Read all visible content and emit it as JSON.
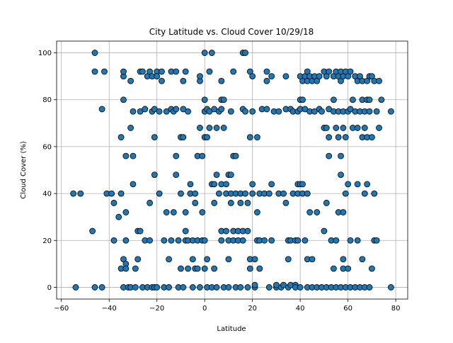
{
  "chart_data": {
    "type": "scatter",
    "title": "City Latitude vs. Cloud Cover 10/29/18",
    "xlabel": "Latitude",
    "ylabel": "Cloud Cover (%)",
    "xlim": [
      -62,
      85
    ],
    "ylim": [
      -5,
      105
    ],
    "xticks": [
      -60,
      -40,
      -20,
      0,
      20,
      40,
      60,
      80
    ],
    "yticks": [
      0,
      20,
      40,
      60,
      80,
      100
    ],
    "xtick_labels": [
      "−60",
      "−40",
      "−20",
      "0",
      "20",
      "40",
      "60",
      "80"
    ],
    "ytick_labels": [
      "0",
      "20",
      "40",
      "60",
      "80",
      "100"
    ],
    "grid": true,
    "marker_color": "#1f77b4",
    "edge_color": "#000000",
    "points": [
      [
        -55,
        40
      ],
      [
        -52,
        40
      ],
      [
        -54,
        0
      ],
      [
        -47,
        24
      ],
      [
        -46,
        100
      ],
      [
        -46,
        92
      ],
      [
        -46,
        0
      ],
      [
        -43,
        0
      ],
      [
        -43,
        76
      ],
      [
        -42,
        92
      ],
      [
        -41,
        40
      ],
      [
        -39,
        40
      ],
      [
        -38,
        36
      ],
      [
        -38,
        20
      ],
      [
        -36,
        30
      ],
      [
        -35,
        64
      ],
      [
        -35,
        40
      ],
      [
        -35,
        8
      ],
      [
        -34,
        12
      ],
      [
        -34,
        0
      ],
      [
        -34,
        90
      ],
      [
        -34,
        92
      ],
      [
        -34,
        80
      ],
      [
        -33,
        56
      ],
      [
        -33,
        32
      ],
      [
        -33,
        20
      ],
      [
        -33,
        10
      ],
      [
        -33,
        8
      ],
      [
        -32,
        0
      ],
      [
        -31,
        0
      ],
      [
        -31,
        68
      ],
      [
        -31,
        88
      ],
      [
        -30,
        44
      ],
      [
        -30,
        75
      ],
      [
        -30,
        56
      ],
      [
        -29,
        8
      ],
      [
        -29,
        0
      ],
      [
        -28,
        24
      ],
      [
        -28,
        12
      ],
      [
        -27,
        92
      ],
      [
        -27,
        75
      ],
      [
        -27,
        24
      ],
      [
        -26,
        0
      ],
      [
        -26,
        92
      ],
      [
        -25,
        76
      ],
      [
        -25,
        20
      ],
      [
        -24,
        90
      ],
      [
        -24,
        0
      ],
      [
        -23,
        92
      ],
      [
        -23,
        36
      ],
      [
        -23,
        20
      ],
      [
        -22,
        90
      ],
      [
        -22,
        75
      ],
      [
        -22,
        0
      ],
      [
        -21,
        64
      ],
      [
        -21,
        76
      ],
      [
        -21,
        48
      ],
      [
        -21,
        0
      ],
      [
        -20,
        92
      ],
      [
        -20,
        90
      ],
      [
        -20,
        0
      ],
      [
        -19,
        75
      ],
      [
        -19,
        40
      ],
      [
        -18,
        88
      ],
      [
        -18,
        92
      ],
      [
        -17,
        20
      ],
      [
        -17,
        0
      ],
      [
        -16,
        32
      ],
      [
        -16,
        75
      ],
      [
        -15,
        12
      ],
      [
        -15,
        0
      ],
      [
        -14,
        92
      ],
      [
        -14,
        76
      ],
      [
        -14,
        20
      ],
      [
        -13,
        75
      ],
      [
        -13,
        32
      ],
      [
        -12,
        92
      ],
      [
        -12,
        76
      ],
      [
        -12,
        56
      ],
      [
        -12,
        48
      ],
      [
        -11,
        0
      ],
      [
        -11,
        20
      ],
      [
        -10,
        64
      ],
      [
        -10,
        40
      ],
      [
        -10,
        8
      ],
      [
        -9,
        88
      ],
      [
        -9,
        76
      ],
      [
        -9,
        64
      ],
      [
        -9,
        0
      ],
      [
        -8,
        92
      ],
      [
        -8,
        24
      ],
      [
        -8,
        20
      ],
      [
        -8,
        32
      ],
      [
        -7,
        75
      ],
      [
        -7,
        20
      ],
      [
        -7,
        8
      ],
      [
        -6,
        44
      ],
      [
        -6,
        40
      ],
      [
        -5,
        12
      ],
      [
        -5,
        0
      ],
      [
        -5,
        20
      ],
      [
        -4,
        40
      ],
      [
        -4,
        36
      ],
      [
        -4,
        8
      ],
      [
        -3,
        56
      ],
      [
        -3,
        20
      ],
      [
        -3,
        8
      ],
      [
        -2,
        88
      ],
      [
        -2,
        90
      ],
      [
        -2,
        68
      ],
      [
        -2,
        0
      ],
      [
        -1,
        56
      ],
      [
        -1,
        32
      ],
      [
        -1,
        20
      ],
      [
        0,
        100
      ],
      [
        0,
        80
      ],
      [
        0,
        75
      ],
      [
        0,
        64
      ],
      [
        0,
        20
      ],
      [
        0,
        8
      ],
      [
        1,
        64
      ],
      [
        1,
        76
      ],
      [
        1,
        12
      ],
      [
        1,
        0
      ],
      [
        2,
        92
      ],
      [
        2,
        75
      ],
      [
        2,
        68
      ],
      [
        3,
        100
      ],
      [
        3,
        44
      ],
      [
        3,
        0
      ],
      [
        4,
        76
      ],
      [
        4,
        44
      ],
      [
        4,
        8
      ],
      [
        4,
        36
      ],
      [
        5,
        48
      ],
      [
        5,
        68
      ],
      [
        5,
        0
      ],
      [
        6,
        75
      ],
      [
        6,
        40
      ],
      [
        7,
        88
      ],
      [
        7,
        80
      ],
      [
        7,
        76
      ],
      [
        7,
        44
      ],
      [
        7,
        24
      ],
      [
        7,
        20
      ],
      [
        8,
        80
      ],
      [
        8,
        68
      ],
      [
        8,
        0
      ],
      [
        9,
        24
      ],
      [
        9,
        44
      ],
      [
        9,
        40
      ],
      [
        10,
        48
      ],
      [
        10,
        20
      ],
      [
        10,
        0
      ],
      [
        10,
        12
      ],
      [
        11,
        48
      ],
      [
        11,
        40
      ],
      [
        11,
        36
      ],
      [
        11,
        75
      ],
      [
        12,
        92
      ],
      [
        12,
        56
      ],
      [
        12,
        20
      ],
      [
        12,
        24
      ],
      [
        13,
        56
      ],
      [
        13,
        40
      ],
      [
        13,
        0
      ],
      [
        14,
        20
      ],
      [
        14,
        24
      ],
      [
        15,
        36
      ],
      [
        15,
        40
      ],
      [
        15,
        0
      ],
      [
        16,
        24
      ],
      [
        16,
        100
      ],
      [
        16,
        76
      ],
      [
        16,
        20
      ],
      [
        17,
        100
      ],
      [
        17,
        40
      ],
      [
        17,
        75
      ],
      [
        18,
        36
      ],
      [
        18,
        24
      ],
      [
        18,
        0
      ],
      [
        19,
        92
      ],
      [
        19,
        64
      ],
      [
        19,
        12
      ],
      [
        19,
        8
      ],
      [
        20,
        90
      ],
      [
        20,
        75
      ],
      [
        20,
        44
      ],
      [
        20,
        40
      ],
      [
        21,
        12
      ],
      [
        21,
        0
      ],
      [
        21,
        1
      ],
      [
        22,
        64
      ],
      [
        22,
        20
      ],
      [
        22,
        32
      ],
      [
        23,
        8
      ],
      [
        23,
        20
      ],
      [
        23,
        40
      ],
      [
        24,
        76
      ],
      [
        25,
        40
      ],
      [
        25,
        20
      ],
      [
        26,
        92
      ],
      [
        26,
        88
      ],
      [
        26,
        76
      ],
      [
        27,
        40
      ],
      [
        27,
        0
      ],
      [
        28,
        90
      ],
      [
        28,
        44
      ],
      [
        28,
        20
      ],
      [
        29,
        75
      ],
      [
        30,
        0
      ],
      [
        30,
        1
      ],
      [
        31,
        40
      ],
      [
        31,
        75
      ],
      [
        32,
        0
      ],
      [
        33,
        1
      ],
      [
        33,
        40
      ],
      [
        34,
        76
      ],
      [
        34,
        36
      ],
      [
        34,
        90
      ],
      [
        35,
        20
      ],
      [
        35,
        12
      ],
      [
        35,
        0
      ],
      [
        36,
        1
      ],
      [
        36,
        76
      ],
      [
        36,
        20
      ],
      [
        37,
        75
      ],
      [
        37,
        40
      ],
      [
        38,
        20
      ],
      [
        38,
        1
      ],
      [
        38,
        0
      ],
      [
        39,
        40
      ],
      [
        39,
        44
      ],
      [
        39,
        75
      ],
      [
        39,
        20
      ],
      [
        40,
        90
      ],
      [
        40,
        44
      ],
      [
        40,
        80
      ],
      [
        40,
        76
      ],
      [
        40,
        0
      ],
      [
        41,
        88
      ],
      [
        41,
        80
      ],
      [
        41,
        44
      ],
      [
        41,
        40
      ],
      [
        42,
        90
      ],
      [
        42,
        76
      ],
      [
        42,
        20
      ],
      [
        43,
        92
      ],
      [
        43,
        88
      ],
      [
        43,
        40
      ],
      [
        43,
        12
      ],
      [
        43,
        0
      ],
      [
        44,
        90
      ],
      [
        44,
        32
      ],
      [
        44,
        75
      ],
      [
        45,
        88
      ],
      [
        45,
        12
      ],
      [
        45,
        0
      ],
      [
        46,
        90
      ],
      [
        46,
        75
      ],
      [
        47,
        88
      ],
      [
        47,
        32
      ],
      [
        47,
        0
      ],
      [
        48,
        76
      ],
      [
        48,
        90
      ],
      [
        49,
        75
      ],
      [
        49,
        0
      ],
      [
        50,
        92
      ],
      [
        50,
        68
      ],
      [
        50,
        24
      ],
      [
        51,
        90
      ],
      [
        51,
        68
      ],
      [
        51,
        36
      ],
      [
        51,
        0
      ],
      [
        52,
        92
      ],
      [
        52,
        76
      ],
      [
        52,
        64
      ],
      [
        52,
        56
      ],
      [
        53,
        20
      ],
      [
        53,
        0
      ],
      [
        54,
        90
      ],
      [
        54,
        80
      ],
      [
        54,
        75
      ],
      [
        54,
        8
      ],
      [
        55,
        92
      ],
      [
        55,
        68
      ],
      [
        55,
        20
      ],
      [
        55,
        0
      ],
      [
        56,
        90
      ],
      [
        56,
        64
      ],
      [
        56,
        75
      ],
      [
        56,
        32
      ],
      [
        57,
        92
      ],
      [
        57,
        88
      ],
      [
        57,
        56
      ],
      [
        57,
        48
      ],
      [
        57,
        0
      ],
      [
        58,
        90
      ],
      [
        58,
        75
      ],
      [
        58,
        68
      ],
      [
        58,
        32
      ],
      [
        58,
        12
      ],
      [
        58,
        8
      ],
      [
        59,
        92
      ],
      [
        59,
        64
      ],
      [
        59,
        40
      ],
      [
        59,
        0
      ],
      [
        60,
        90
      ],
      [
        60,
        75
      ],
      [
        60,
        44
      ],
      [
        60,
        8
      ],
      [
        61,
        92
      ],
      [
        61,
        76
      ],
      [
        61,
        20
      ],
      [
        61,
        0
      ],
      [
        62,
        80
      ],
      [
        62,
        68
      ],
      [
        63,
        90
      ],
      [
        63,
        75
      ],
      [
        63,
        0
      ],
      [
        64,
        88
      ],
      [
        64,
        68
      ],
      [
        64,
        44
      ],
      [
        64,
        20
      ],
      [
        65,
        90
      ],
      [
        65,
        75
      ],
      [
        65,
        0
      ],
      [
        66,
        88
      ],
      [
        66,
        80
      ],
      [
        66,
        64
      ],
      [
        66,
        12
      ],
      [
        67,
        75
      ],
      [
        67,
        68
      ],
      [
        67,
        40
      ],
      [
        67,
        0
      ],
      [
        68,
        88
      ],
      [
        68,
        80
      ],
      [
        68,
        64
      ],
      [
        68,
        44
      ],
      [
        69,
        90
      ],
      [
        69,
        75
      ],
      [
        69,
        80
      ],
      [
        69,
        0
      ],
      [
        70,
        64
      ],
      [
        70,
        8
      ],
      [
        70,
        90
      ],
      [
        71,
        20
      ],
      [
        71,
        40
      ],
      [
        71,
        88
      ],
      [
        72,
        75
      ],
      [
        72,
        20
      ],
      [
        73,
        88
      ],
      [
        73,
        68
      ],
      [
        74,
        80
      ],
      [
        78,
        75
      ],
      [
        78,
        0
      ]
    ]
  }
}
